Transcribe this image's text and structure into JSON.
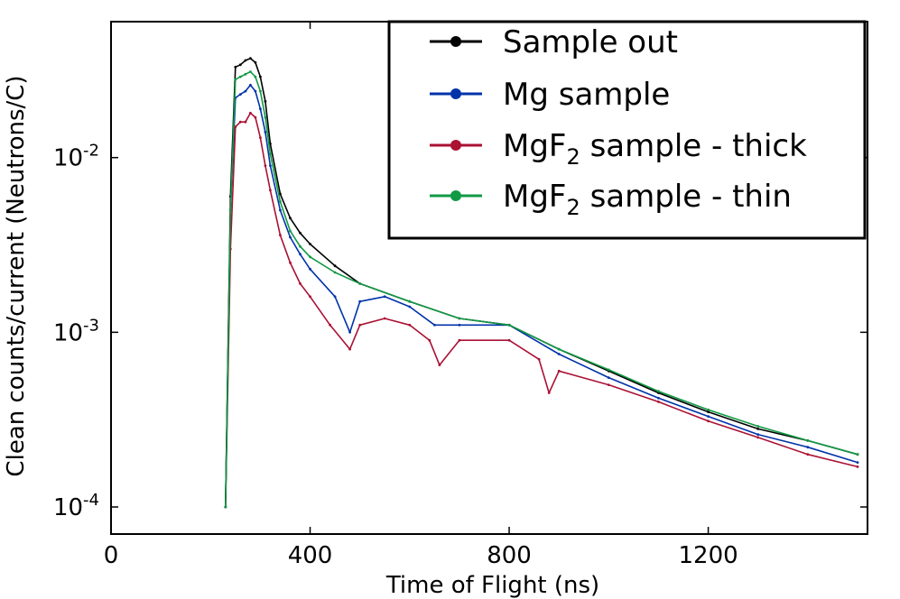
{
  "chart_data": {
    "type": "line",
    "xlabel": "Time of Flight (ns)",
    "ylabel": "Clean counts/current (Neutrons/C)",
    "xlim": [
      0,
      1520
    ],
    "ylim": [
      7e-05,
      0.06
    ],
    "yscale": "log",
    "x_ticks": [
      {
        "value": 0,
        "label": "0"
      },
      {
        "value": 400,
        "label": "400"
      },
      {
        "value": 800,
        "label": "800"
      },
      {
        "value": 1200,
        "label": "1200"
      }
    ],
    "y_ticks": [
      {
        "value": 0.01,
        "base": "10",
        "exp": "-2"
      },
      {
        "value": 0.001,
        "base": "10",
        "exp": "-3"
      },
      {
        "value": 0.0001,
        "base": "10",
        "exp": "-4"
      }
    ],
    "legend_position": "top-right",
    "series": [
      {
        "name": "Sample out",
        "name_main": "Sample out",
        "name_sub": "",
        "name_tail": "",
        "color": "#000000",
        "x": [
          230,
          240,
          250,
          260,
          270,
          280,
          290,
          300,
          310,
          320,
          340,
          360,
          380,
          400,
          450,
          500,
          600,
          700,
          800,
          900,
          1000,
          1100,
          1200,
          1300,
          1400,
          1500
        ],
        "y": [
          0.0001,
          0.006,
          0.033,
          0.034,
          0.036,
          0.037,
          0.035,
          0.029,
          0.021,
          0.012,
          0.0062,
          0.0045,
          0.0037,
          0.0032,
          0.0024,
          0.0019,
          0.0015,
          0.0012,
          0.0011,
          0.0008,
          0.0006,
          0.00045,
          0.00035,
          0.00028,
          0.00024,
          0.0002
        ]
      },
      {
        "name": "Mg sample",
        "name_main": "Mg sample",
        "name_sub": "",
        "name_tail": "",
        "color": "#0033aa",
        "x": [
          230,
          240,
          250,
          260,
          270,
          280,
          290,
          300,
          310,
          320,
          340,
          360,
          380,
          400,
          450,
          480,
          500,
          550,
          600,
          650,
          700,
          800,
          900,
          1000,
          1100,
          1200,
          1300,
          1400,
          1500
        ],
        "y": [
          0.0001,
          0.005,
          0.022,
          0.023,
          0.024,
          0.026,
          0.024,
          0.019,
          0.014,
          0.009,
          0.005,
          0.0035,
          0.0028,
          0.0023,
          0.0016,
          0.001,
          0.0015,
          0.0016,
          0.0014,
          0.0011,
          0.0011,
          0.0011,
          0.00075,
          0.00055,
          0.00042,
          0.00033,
          0.00026,
          0.00022,
          0.00018
        ]
      },
      {
        "name": "MgF2 sample - thick",
        "name_main": "MgF",
        "name_sub": "2",
        "name_tail": " sample - thick",
        "color": "#aa1133",
        "x": [
          230,
          240,
          250,
          260,
          270,
          280,
          290,
          300,
          310,
          320,
          340,
          360,
          380,
          400,
          440,
          480,
          500,
          550,
          600,
          640,
          660,
          700,
          800,
          860,
          880,
          900,
          1000,
          1100,
          1200,
          1300,
          1400,
          1500
        ],
        "y": [
          0.0001,
          0.003,
          0.015,
          0.016,
          0.016,
          0.018,
          0.017,
          0.013,
          0.009,
          0.0065,
          0.0036,
          0.0025,
          0.0019,
          0.0016,
          0.0011,
          0.0008,
          0.0011,
          0.0012,
          0.0011,
          0.0009,
          0.00065,
          0.0009,
          0.0009,
          0.0007,
          0.00045,
          0.0006,
          0.0005,
          0.0004,
          0.00031,
          0.00025,
          0.0002,
          0.00017
        ]
      },
      {
        "name": "MgF2 sample - thin",
        "name_main": "MgF",
        "name_sub": "2",
        "name_tail": " sample - thin",
        "color": "#119944",
        "x": [
          230,
          240,
          250,
          260,
          270,
          280,
          290,
          300,
          310,
          320,
          340,
          360,
          380,
          400,
          450,
          500,
          600,
          700,
          800,
          900,
          1000,
          1100,
          1200,
          1300,
          1400,
          1500
        ],
        "y": [
          0.0001,
          0.005,
          0.028,
          0.029,
          0.03,
          0.031,
          0.029,
          0.024,
          0.017,
          0.0105,
          0.0056,
          0.0038,
          0.0031,
          0.0027,
          0.0022,
          0.0019,
          0.0015,
          0.0012,
          0.0011,
          0.0008,
          0.00061,
          0.00046,
          0.00036,
          0.00029,
          0.00024,
          0.0002
        ]
      }
    ]
  }
}
